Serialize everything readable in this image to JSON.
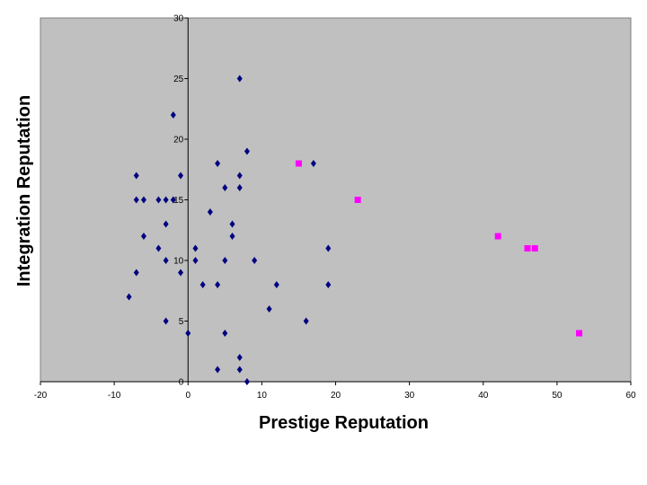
{
  "chart_data": {
    "type": "scatter",
    "title": "",
    "xlabel": "Prestige Reputation",
    "ylabel": "Integration Reputation",
    "xlim": [
      -20,
      60
    ],
    "ylim": [
      0,
      30
    ],
    "x_ticks": [
      -20,
      -10,
      0,
      10,
      20,
      30,
      40,
      50,
      60
    ],
    "y_ticks": [
      0,
      5,
      10,
      15,
      20,
      25,
      30
    ],
    "grid": false,
    "legend": "none",
    "plot_background": "#c0c0c0",
    "series": [
      {
        "color": "#000080",
        "marker": "diamond",
        "points": [
          [
            7,
            25
          ],
          [
            -2,
            22
          ],
          [
            8,
            19
          ],
          [
            4,
            18
          ],
          [
            17,
            18
          ],
          [
            -7,
            17
          ],
          [
            -1,
            17
          ],
          [
            7,
            17
          ],
          [
            5,
            16
          ],
          [
            7,
            16
          ],
          [
            -7,
            15
          ],
          [
            -6,
            15
          ],
          [
            -4,
            15
          ],
          [
            -3,
            15
          ],
          [
            -2,
            15
          ],
          [
            3,
            14
          ],
          [
            -3,
            13
          ],
          [
            6,
            13
          ],
          [
            -6,
            12
          ],
          [
            6,
            12
          ],
          [
            -4,
            11
          ],
          [
            1,
            11
          ],
          [
            19,
            11
          ],
          [
            -3,
            10
          ],
          [
            1,
            10
          ],
          [
            5,
            10
          ],
          [
            9,
            10
          ],
          [
            -7,
            9
          ],
          [
            -1,
            9
          ],
          [
            2,
            8
          ],
          [
            4,
            8
          ],
          [
            12,
            8
          ],
          [
            19,
            8
          ],
          [
            -8,
            7
          ],
          [
            11,
            6
          ],
          [
            -3,
            5
          ],
          [
            16,
            5
          ],
          [
            0,
            4
          ],
          [
            5,
            4
          ],
          [
            7,
            2
          ],
          [
            4,
            1
          ],
          [
            7,
            1
          ],
          [
            8,
            0
          ]
        ]
      },
      {
        "color": "#ff00ff",
        "marker": "square",
        "points": [
          [
            15,
            18
          ],
          [
            23,
            15
          ],
          [
            42,
            12
          ],
          [
            46,
            11
          ],
          [
            47,
            11
          ],
          [
            53,
            4
          ]
        ]
      }
    ]
  }
}
